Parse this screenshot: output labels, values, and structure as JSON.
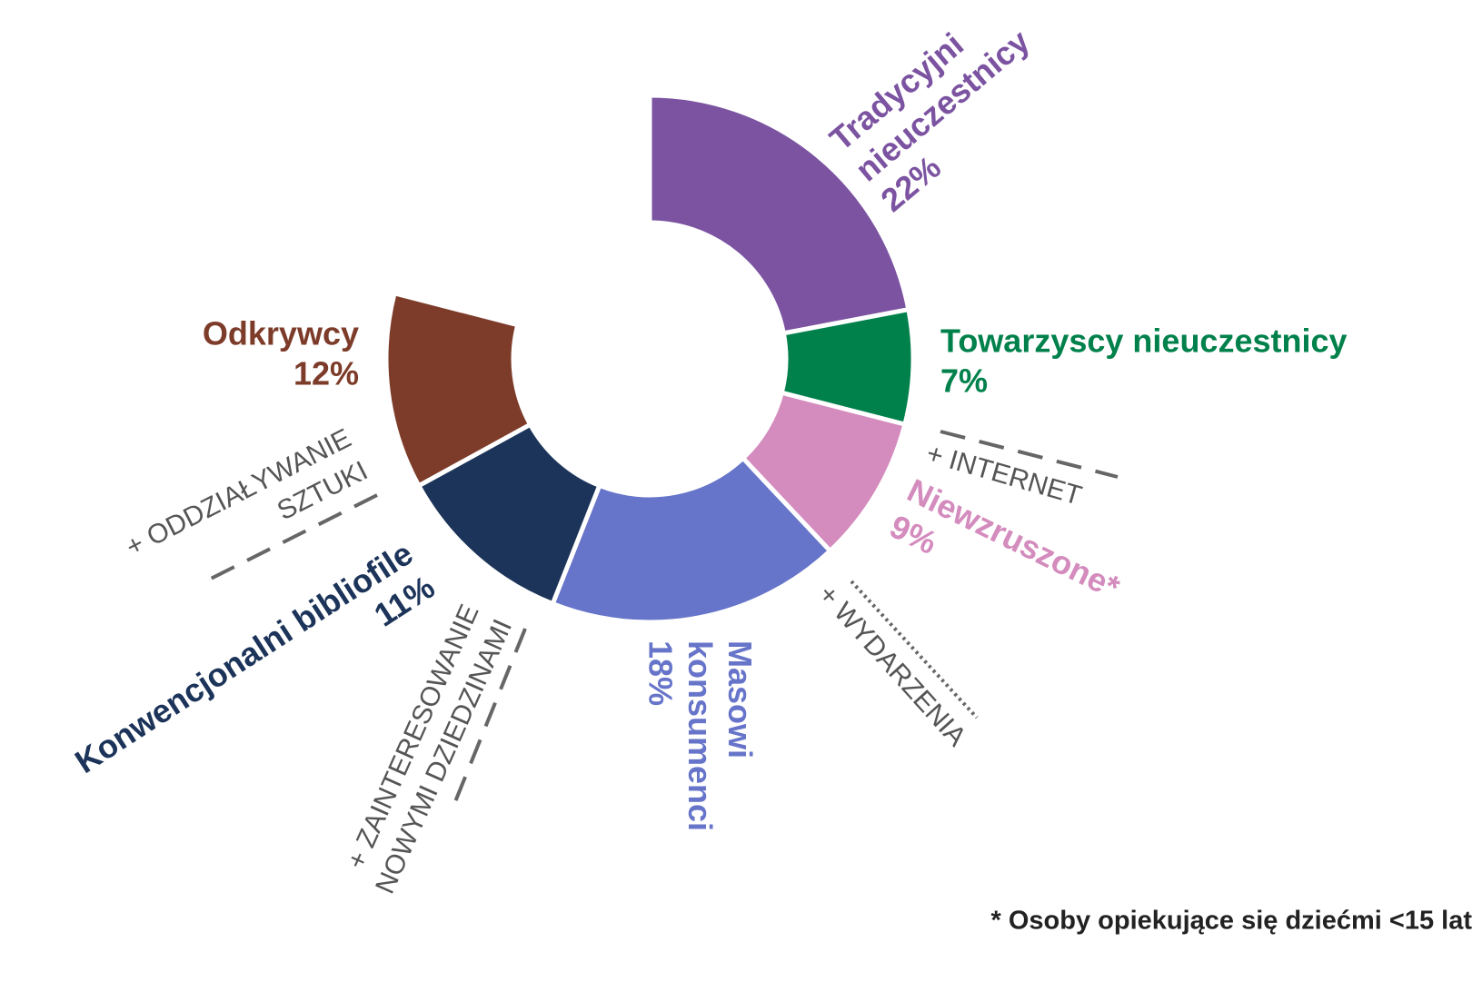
{
  "chart_data": {
    "type": "donut",
    "categories": [
      "Tradycyjni nieuczestnicy",
      "Towarzyscy nieuczestnicy",
      "Niewzruszone*",
      "Masowi konsumenci",
      "Konwencjonalni bibliofile",
      "Odkrywcy"
    ],
    "values": [
      22,
      7,
      9,
      18,
      11,
      12
    ],
    "value_labels": [
      "22%",
      "7%",
      "9%",
      "18%",
      "11%",
      "12%"
    ],
    "colors": [
      "#7b53a1",
      "#00814b",
      "#d48bbd",
      "#6674c9",
      "#1c3459",
      "#7d3b29"
    ],
    "annotations": [
      {
        "lines": [
          "+ INTERNET"
        ],
        "line_style": "dashed"
      },
      {
        "lines": [
          "+ WYDARZENIA"
        ],
        "line_style": "dotted"
      },
      {
        "lines": [
          "+ ZAINTERESOWANIE",
          "NOWYMI DZIEDZINAMI"
        ],
        "line_style": "dashed"
      },
      {
        "lines": [
          "+ ODDZIAŁYWANIE",
          "SZTUKI"
        ],
        "line_style": "dashed"
      }
    ],
    "footnote": "* Osoby opiekujące się dziećmi <15 lat"
  }
}
